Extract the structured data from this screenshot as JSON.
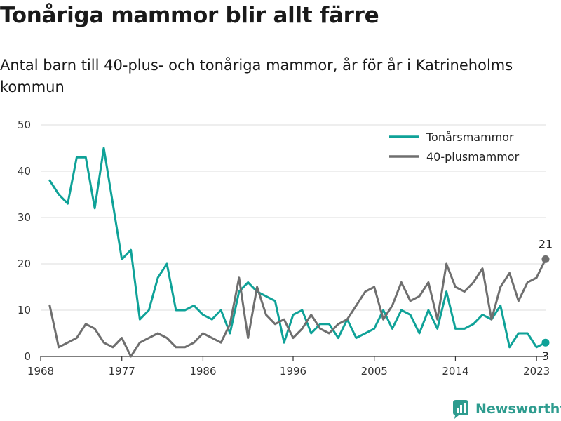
{
  "header": {
    "title": "Tonåriga mammor blir allt färre",
    "subtitle": "Antal barn till 40-plus- och tonåriga mammor, år för år i Katrineholms kommun"
  },
  "brand": {
    "name": "Newsworthy",
    "color": "#2e9c8f"
  },
  "chart_data": {
    "type": "line",
    "title": "Tonåriga mammor blir allt färre",
    "subtitle": "Antal barn till 40-plus- och tonåriga mammor, år för år i Katrineholms kommun",
    "xlabel": "",
    "ylabel": "",
    "xlim": [
      1968,
      2024
    ],
    "ylim": [
      0,
      50
    ],
    "x_ticks": [
      1968,
      1977,
      1986,
      1996,
      2005,
      2014,
      2023
    ],
    "y_ticks": [
      0,
      10,
      20,
      30,
      40,
      50
    ],
    "grid": "horizontal",
    "legend_position": "top-right",
    "x": [
      1969,
      1970,
      1971,
      1972,
      1973,
      1974,
      1975,
      1976,
      1977,
      1978,
      1979,
      1980,
      1981,
      1982,
      1983,
      1984,
      1985,
      1986,
      1987,
      1988,
      1989,
      1990,
      1991,
      1992,
      1993,
      1994,
      1995,
      1996,
      1997,
      1998,
      1999,
      2000,
      2001,
      2002,
      2003,
      2004,
      2005,
      2006,
      2007,
      2008,
      2009,
      2010,
      2011,
      2012,
      2013,
      2014,
      2015,
      2016,
      2017,
      2018,
      2019,
      2020,
      2021,
      2022,
      2023,
      2024
    ],
    "series": [
      {
        "name": "Tonårsmammor",
        "color": "#0fa298",
        "values": [
          38,
          35,
          33,
          43,
          43,
          32,
          45,
          33,
          21,
          23,
          8,
          10,
          17,
          20,
          10,
          10,
          11,
          9,
          8,
          10,
          5,
          14,
          16,
          14,
          13,
          12,
          3,
          9,
          10,
          5,
          7,
          7,
          4,
          8,
          4,
          5,
          6,
          10,
          6,
          10,
          9,
          5,
          10,
          6,
          14,
          6,
          6,
          7,
          9,
          8,
          11,
          2,
          5,
          5,
          2,
          3
        ],
        "end_label": "3"
      },
      {
        "name": "40-plusmammor",
        "color": "#6f6f6f",
        "values": [
          11,
          2,
          3,
          4,
          7,
          6,
          3,
          2,
          4,
          0,
          3,
          4,
          5,
          4,
          2,
          2,
          3,
          5,
          4,
          3,
          7,
          17,
          4,
          15,
          9,
          7,
          8,
          4,
          6,
          9,
          6,
          5,
          7,
          8,
          11,
          14,
          15,
          8,
          11,
          16,
          12,
          13,
          16,
          8,
          20,
          15,
          14,
          16,
          19,
          8,
          15,
          18,
          12,
          16,
          17,
          21
        ],
        "end_label": "21"
      }
    ]
  }
}
